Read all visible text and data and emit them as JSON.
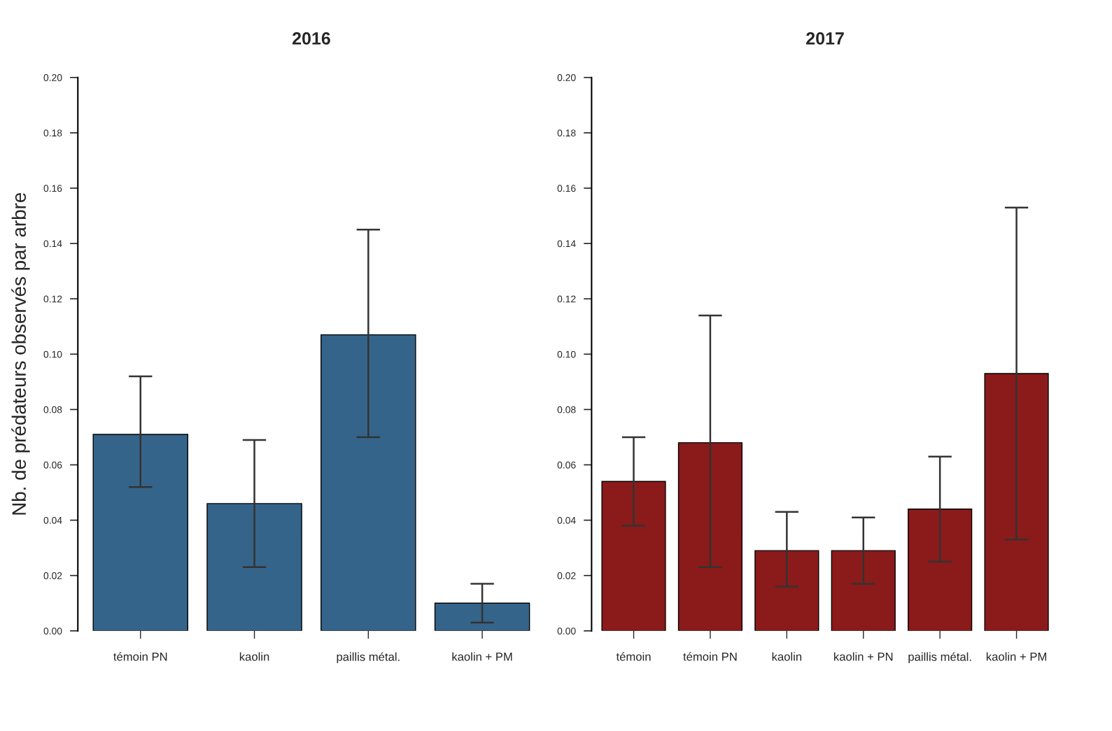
{
  "chart_data": [
    {
      "type": "bar",
      "title": "2016",
      "ylabel": "Nb. de prédateurs observés par arbre",
      "categories": [
        "témoin PN",
        "kaolin",
        "paillis métal.",
        "kaolin + PM"
      ],
      "values": [
        0.071,
        0.046,
        0.107,
        0.01
      ],
      "color": "#35648a",
      "errors": [
        [
          0.052,
          0.092
        ],
        [
          0.023,
          0.069
        ],
        [
          0.07,
          0.145
        ],
        [
          0.003,
          0.017
        ]
      ],
      "ylim": [
        0,
        0.2
      ],
      "yticks": [
        {
          "value": 0,
          "label": "0.00"
        },
        {
          "value": 0.02,
          "label": "0.02"
        },
        {
          "value": 0.04,
          "label": "0.04"
        },
        {
          "value": 0.06,
          "label": "0.06"
        },
        {
          "value": 0.08,
          "label": "0.08"
        },
        {
          "value": 0.1,
          "label": "0.10"
        },
        {
          "value": 0.12,
          "label": "0.12"
        },
        {
          "value": 0.14,
          "label": "0.14"
        },
        {
          "value": 0.16,
          "label": "0.16"
        },
        {
          "value": 0.18,
          "label": "0.18"
        },
        {
          "value": 0.2,
          "label": "0.20"
        }
      ],
      "grid": false,
      "legend": false
    },
    {
      "type": "bar",
      "title": "2017",
      "categories": [
        "témoin",
        "témoin PN",
        "kaolin",
        "kaolin + PN",
        "paillis métal.",
        "kaolin + PM"
      ],
      "values": [
        0.054,
        0.068,
        0.029,
        0.029,
        0.044,
        0.093
      ],
      "color": "#8b1a1a",
      "errors": [
        [
          0.038,
          0.07
        ],
        [
          0.023,
          0.114
        ],
        [
          0.016,
          0.043
        ],
        [
          0.017,
          0.041
        ],
        [
          0.025,
          0.063
        ],
        [
          0.033,
          0.153
        ]
      ],
      "ylim": [
        0,
        0.2
      ],
      "yticks": [
        {
          "value": 0,
          "label": "0.00"
        },
        {
          "value": 0.02,
          "label": "0.02"
        },
        {
          "value": 0.04,
          "label": "0.04"
        },
        {
          "value": 0.06,
          "label": "0.06"
        },
        {
          "value": 0.08,
          "label": "0.08"
        },
        {
          "value": 0.1,
          "label": "0.10"
        },
        {
          "value": 0.12,
          "label": "0.12"
        },
        {
          "value": 0.14,
          "label": "0.14"
        },
        {
          "value": 0.16,
          "label": "0.16"
        },
        {
          "value": 0.18,
          "label": "0.18"
        },
        {
          "value": 0.2,
          "label": "0.20"
        }
      ],
      "grid": false,
      "legend": false
    }
  ]
}
